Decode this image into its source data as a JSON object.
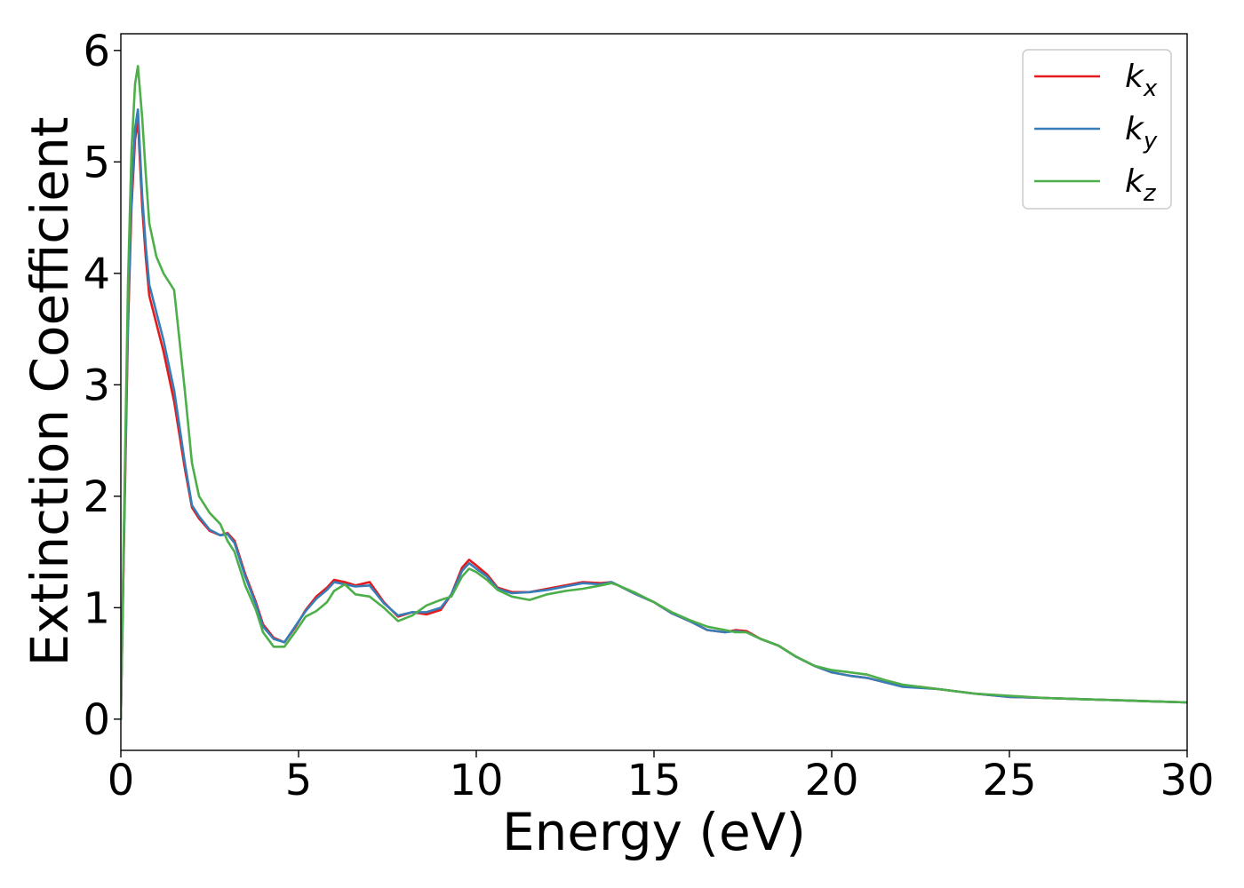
{
  "chart_data": {
    "type": "line",
    "title": "",
    "xlabel": "Energy (eV)",
    "ylabel": "Extinction Coefficient",
    "xlim": [
      0,
      30
    ],
    "ylim": [
      -0.28,
      6.15
    ],
    "xticks": [
      0,
      5,
      10,
      15,
      20,
      25,
      30
    ],
    "yticks": [
      0,
      1,
      2,
      3,
      4,
      5,
      6
    ],
    "grid": false,
    "legend_position": "top-right",
    "series": [
      {
        "name": "k_x",
        "label_base": "k",
        "label_sub": "x",
        "color": "#e41a1c",
        "x": [
          0,
          0.1,
          0.2,
          0.3,
          0.4,
          0.48,
          0.6,
          0.7,
          0.8,
          1.0,
          1.2,
          1.5,
          1.8,
          2.0,
          2.2,
          2.5,
          2.8,
          3.0,
          3.2,
          3.5,
          3.8,
          4.0,
          4.3,
          4.6,
          4.9,
          5.2,
          5.5,
          5.8,
          6.0,
          6.3,
          6.6,
          7.0,
          7.4,
          7.8,
          8.2,
          8.6,
          9.0,
          9.3,
          9.6,
          9.8,
          10.0,
          10.3,
          10.6,
          11.0,
          11.5,
          12.0,
          12.5,
          13.0,
          13.5,
          13.8,
          14.0,
          14.5,
          15.0,
          15.5,
          16.0,
          16.5,
          17.0,
          17.3,
          17.6,
          18.0,
          18.5,
          19.0,
          19.5,
          20.0,
          20.5,
          21.0,
          21.5,
          22.0,
          22.5,
          23.0,
          24.0,
          25.0,
          26.0,
          27.0,
          28.0,
          29.0,
          30.0
        ],
        "y": [
          0.0,
          1.8,
          3.5,
          4.6,
          5.2,
          5.38,
          4.6,
          4.15,
          3.8,
          3.55,
          3.3,
          2.85,
          2.25,
          1.9,
          1.8,
          1.69,
          1.65,
          1.67,
          1.6,
          1.3,
          1.05,
          0.85,
          0.73,
          0.69,
          0.82,
          0.98,
          1.1,
          1.18,
          1.25,
          1.23,
          1.2,
          1.23,
          1.05,
          0.92,
          0.96,
          0.94,
          0.98,
          1.12,
          1.36,
          1.43,
          1.38,
          1.3,
          1.18,
          1.14,
          1.14,
          1.17,
          1.2,
          1.23,
          1.22,
          1.23,
          1.2,
          1.12,
          1.05,
          0.95,
          0.88,
          0.8,
          0.78,
          0.8,
          0.79,
          0.72,
          0.66,
          0.56,
          0.48,
          0.42,
          0.39,
          0.37,
          0.33,
          0.3,
          0.29,
          0.27,
          0.23,
          0.2,
          0.19,
          0.18,
          0.17,
          0.16,
          0.15
        ]
      },
      {
        "name": "k_y",
        "label_base": "k",
        "label_sub": "y",
        "color": "#377eb8",
        "x": [
          0,
          0.1,
          0.2,
          0.3,
          0.4,
          0.48,
          0.6,
          0.7,
          0.8,
          1.0,
          1.2,
          1.5,
          1.8,
          2.0,
          2.2,
          2.5,
          2.8,
          3.0,
          3.2,
          3.5,
          3.8,
          4.0,
          4.3,
          4.6,
          4.9,
          5.2,
          5.5,
          5.8,
          6.0,
          6.3,
          6.6,
          7.0,
          7.4,
          7.8,
          8.2,
          8.6,
          9.0,
          9.3,
          9.6,
          9.8,
          10.0,
          10.3,
          10.6,
          11.0,
          11.5,
          12.0,
          12.5,
          13.0,
          13.5,
          13.8,
          14.0,
          14.5,
          15.0,
          15.5,
          16.0,
          16.5,
          17.0,
          17.3,
          17.6,
          18.0,
          18.5,
          19.0,
          19.5,
          20.0,
          20.5,
          21.0,
          21.5,
          22.0,
          22.5,
          23.0,
          24.0,
          25.0,
          26.0,
          27.0,
          28.0,
          29.0,
          30.0
        ],
        "y": [
          0.0,
          1.9,
          3.6,
          4.7,
          5.3,
          5.47,
          4.7,
          4.25,
          3.9,
          3.65,
          3.4,
          2.95,
          2.3,
          1.92,
          1.82,
          1.7,
          1.65,
          1.66,
          1.58,
          1.28,
          1.03,
          0.83,
          0.72,
          0.69,
          0.83,
          0.97,
          1.08,
          1.16,
          1.23,
          1.21,
          1.19,
          1.2,
          1.04,
          0.93,
          0.96,
          0.96,
          1.0,
          1.12,
          1.33,
          1.4,
          1.35,
          1.28,
          1.17,
          1.13,
          1.14,
          1.16,
          1.19,
          1.22,
          1.21,
          1.23,
          1.2,
          1.12,
          1.05,
          0.95,
          0.88,
          0.8,
          0.78,
          0.79,
          0.78,
          0.72,
          0.66,
          0.56,
          0.48,
          0.42,
          0.39,
          0.37,
          0.33,
          0.29,
          0.28,
          0.27,
          0.23,
          0.2,
          0.19,
          0.18,
          0.17,
          0.16,
          0.15
        ]
      },
      {
        "name": "k_z",
        "label_base": "k",
        "label_sub": "z",
        "color": "#4daf4a",
        "x": [
          0,
          0.1,
          0.2,
          0.3,
          0.4,
          0.48,
          0.6,
          0.7,
          0.8,
          1.0,
          1.2,
          1.5,
          1.8,
          2.0,
          2.2,
          2.5,
          2.8,
          3.0,
          3.2,
          3.5,
          3.8,
          4.0,
          4.3,
          4.6,
          4.9,
          5.2,
          5.5,
          5.8,
          6.0,
          6.3,
          6.6,
          7.0,
          7.4,
          7.8,
          8.2,
          8.6,
          9.0,
          9.3,
          9.6,
          9.8,
          10.0,
          10.3,
          10.6,
          11.0,
          11.5,
          12.0,
          12.5,
          13.0,
          13.5,
          13.8,
          14.0,
          14.5,
          15.0,
          15.5,
          16.0,
          16.5,
          17.0,
          17.3,
          17.6,
          18.0,
          18.5,
          19.0,
          19.5,
          20.0,
          20.5,
          21.0,
          21.5,
          22.0,
          22.5,
          23.0,
          24.0,
          25.0,
          26.0,
          27.0,
          28.0,
          29.0,
          30.0
        ],
        "y": [
          0.0,
          2.0,
          3.9,
          5.1,
          5.7,
          5.86,
          5.4,
          4.9,
          4.45,
          4.15,
          4.0,
          3.85,
          2.95,
          2.3,
          2.0,
          1.85,
          1.75,
          1.6,
          1.5,
          1.2,
          0.98,
          0.78,
          0.65,
          0.65,
          0.78,
          0.92,
          0.97,
          1.05,
          1.15,
          1.21,
          1.12,
          1.1,
          1.0,
          0.88,
          0.93,
          1.02,
          1.07,
          1.1,
          1.28,
          1.35,
          1.32,
          1.25,
          1.16,
          1.1,
          1.07,
          1.12,
          1.15,
          1.17,
          1.2,
          1.22,
          1.2,
          1.13,
          1.05,
          0.96,
          0.89,
          0.83,
          0.8,
          0.78,
          0.78,
          0.72,
          0.66,
          0.56,
          0.48,
          0.44,
          0.42,
          0.4,
          0.35,
          0.31,
          0.29,
          0.27,
          0.23,
          0.21,
          0.19,
          0.18,
          0.17,
          0.16,
          0.15
        ]
      }
    ]
  }
}
